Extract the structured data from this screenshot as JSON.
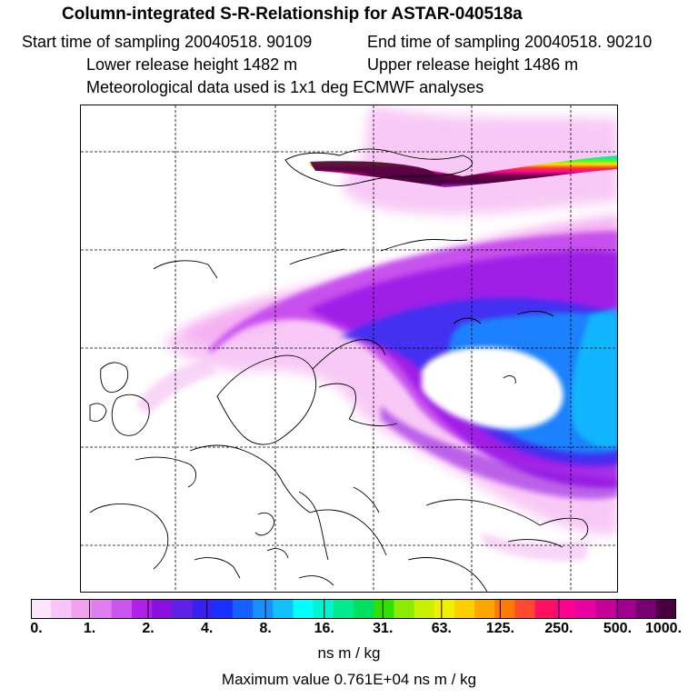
{
  "header": {
    "title": "Column-integrated S-R-Relationship for ASTAR-040518a",
    "start_time": "Start time of sampling 20040518. 90109",
    "end_time": "End time of sampling 20040518. 90210",
    "lower_height": "Lower release height 1482 m",
    "upper_height": "Upper release height 1486 m",
    "met_data": "Meteorological data used is 1x1 deg ECMWF analyses"
  },
  "colorbar": {
    "colors": [
      "#fde6fb",
      "#f8c6f6",
      "#f3a0f0",
      "#e27df1",
      "#cc55ee",
      "#b020e8",
      "#8a10e0",
      "#6020e6",
      "#3a20f0",
      "#1a30ff",
      "#1560ff",
      "#1592ff",
      "#10c0ff",
      "#00ffff",
      "#00f4d0",
      "#00ea90",
      "#00e060",
      "#30e000",
      "#8cec00",
      "#c8f000",
      "#f0f000",
      "#ffd000",
      "#ffa500",
      "#ff7a00",
      "#ff4a30",
      "#ff1060",
      "#ff0090",
      "#e800a0",
      "#c8009a",
      "#a00090",
      "#780070",
      "#4a0040"
    ],
    "tick_labels": [
      "0.",
      "1.",
      "2.",
      "4.",
      "8.",
      "16.",
      "31.",
      "63.",
      "125.",
      "250.",
      "500.",
      "1000."
    ]
  },
  "units": "ns m / kg",
  "max_value": "Maximum value  0.761E+04 ns m / kg"
}
